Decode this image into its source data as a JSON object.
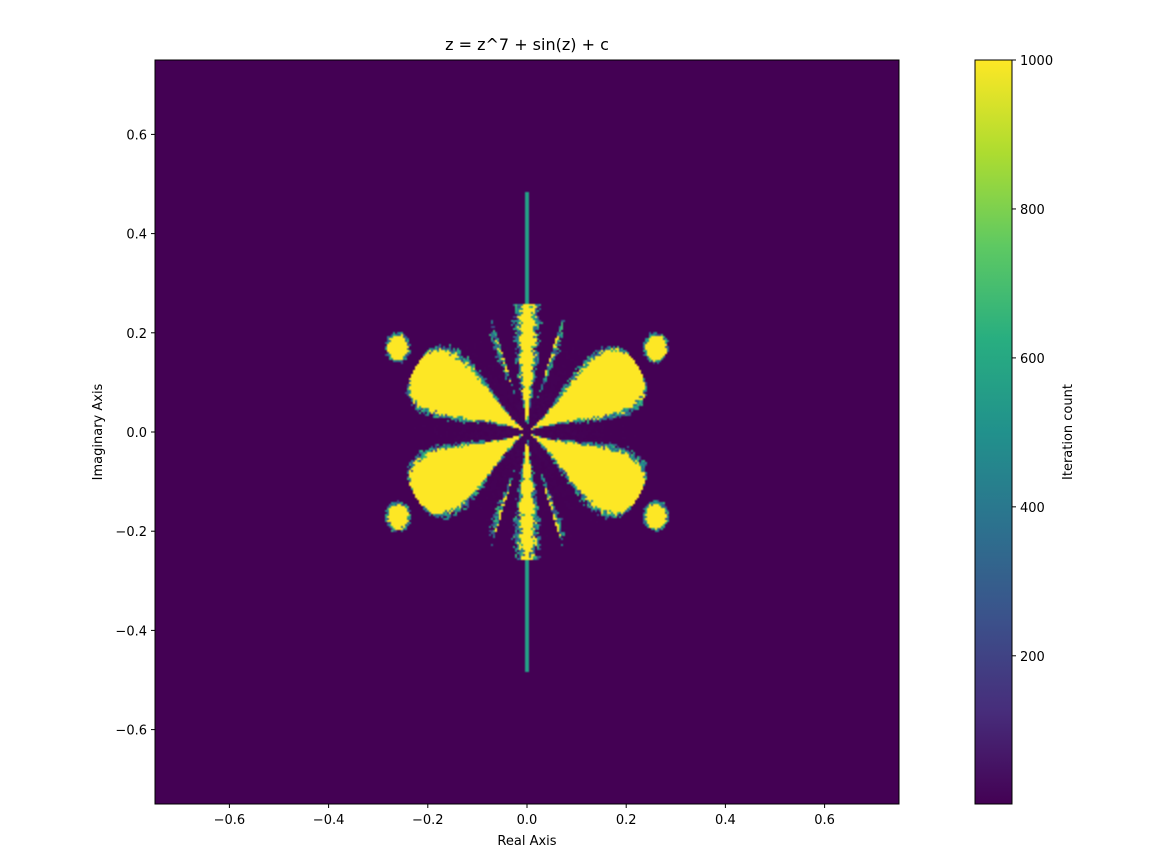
{
  "chart_data": {
    "type": "heatmap",
    "title": "z = z^7 + sin(z) + c",
    "xlabel": "Real Axis",
    "ylabel": "Imaginary Axis",
    "xlim": [
      -0.75,
      0.75
    ],
    "ylim": [
      -0.75,
      0.75
    ],
    "x_ticks": [
      -0.6,
      -0.4,
      -0.2,
      0.0,
      0.2,
      0.4,
      0.6
    ],
    "x_tick_labels": [
      "−0.6",
      "−0.4",
      "−0.2",
      "0.0",
      "0.2",
      "0.4",
      "0.6"
    ],
    "y_ticks": [
      -0.6,
      -0.4,
      -0.2,
      0.0,
      0.2,
      0.4,
      0.6
    ],
    "y_tick_labels": [
      "−0.6",
      "−0.4",
      "−0.2",
      "0.0",
      "0.2",
      "0.4",
      "0.6"
    ],
    "colorbar": {
      "label": "Iteration count",
      "range": [
        1,
        1000
      ],
      "ticks": [
        200,
        400,
        600,
        800,
        1000
      ],
      "tick_labels": [
        "200",
        "400",
        "600",
        "800",
        "1000"
      ],
      "colormap": "viridis"
    },
    "fractal": {
      "background_value": 1,
      "set_value": 1000,
      "petals_angles_deg": [
        30,
        90,
        150,
        210,
        270,
        330
      ],
      "petal_reach": 0.26,
      "bud_centers": [
        [
          0.26,
          0.17
        ],
        [
          -0.26,
          0.17
        ],
        [
          0.26,
          -0.17
        ],
        [
          -0.26,
          -0.17
        ]
      ],
      "spike_extent": [
        -0.485,
        0.485
      ],
      "spike_value": 560
    },
    "grid": false
  }
}
